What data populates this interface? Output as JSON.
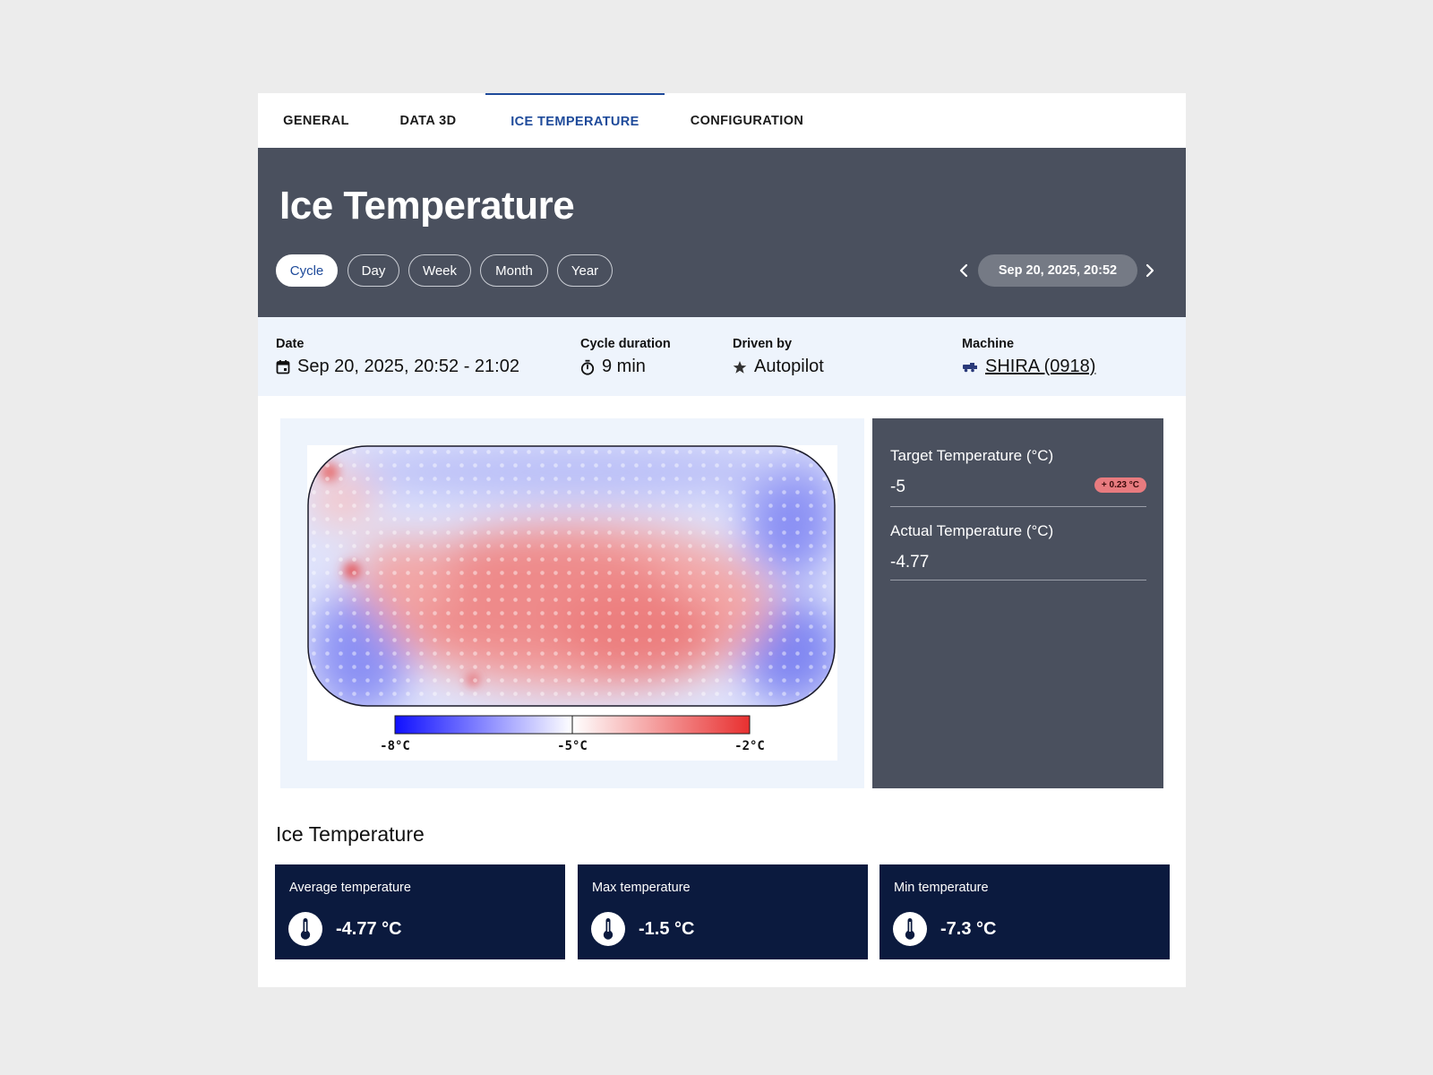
{
  "tabs": [
    {
      "label": "GENERAL"
    },
    {
      "label": "DATA 3D"
    },
    {
      "label": "ICE TEMPERATURE"
    },
    {
      "label": "CONFIGURATION"
    }
  ],
  "header": {
    "title": "Ice Temperature",
    "periods": [
      "Cycle",
      "Day",
      "Week",
      "Month",
      "Year"
    ],
    "active_period": "Cycle",
    "current_date": "Sep 20, 2025, 20:52"
  },
  "info": {
    "date_label": "Date",
    "date_value": "Sep 20, 2025, 20:52 - 21:02",
    "duration_label": "Cycle duration",
    "duration_value": "9 min",
    "driven_label": "Driven by",
    "driven_value": "Autopilot",
    "machine_label": "Machine",
    "machine_value": "SHIRA (0918)"
  },
  "heatmap": {
    "scale_min": "-8°C",
    "scale_mid": "-5°C",
    "scale_max": "-2°C",
    "color_cold": "#1010ff",
    "color_neutral": "#ffffff",
    "color_warm": "#e83030"
  },
  "metrics": {
    "target_label": "Target Temperature (°C)",
    "target_value": "-5",
    "target_delta": "+ 0.23 °C",
    "actual_label": "Actual Temperature (°C)",
    "actual_value": "-4.77"
  },
  "stats": {
    "title": "Ice Temperature",
    "items": [
      {
        "label": "Average temperature",
        "value": "-4.77 °C",
        "icon": "thermometer-icon"
      },
      {
        "label": "Max temperature",
        "value": "-1.5 °C",
        "icon": "thermometer-icon"
      },
      {
        "label": "Min temperature",
        "value": "-7.3 °C",
        "icon": "thermometer-icon"
      }
    ]
  },
  "colors": {
    "accent": "#1e4a9a",
    "header_bg": "#4a505e",
    "info_bg": "#eef4fc",
    "stat_bg": "#0b1a3e",
    "badge_bg": "#e87b7f"
  }
}
